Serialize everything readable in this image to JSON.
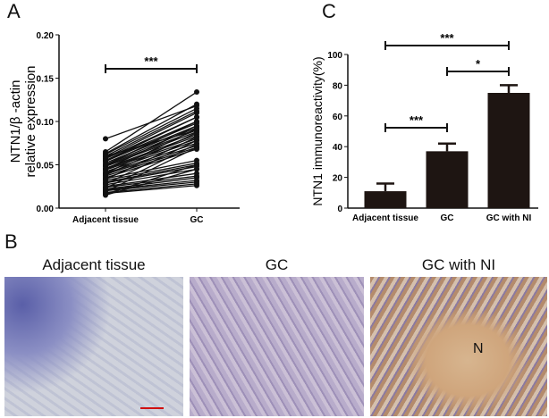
{
  "panels": {
    "a": "A",
    "b": "B",
    "c": "C"
  },
  "chart_data": [
    {
      "type": "line",
      "panel": "A",
      "ylabel": "NTN1/β -actin relative expression",
      "ylabel_lines": [
        "NTN1/β -actin",
        "relative expression"
      ],
      "categories": [
        "Adjacent tissue",
        "GC"
      ],
      "ylim": [
        0,
        0.2
      ],
      "yticks": [
        "0.00",
        "0.05",
        "0.10",
        "0.15",
        "0.20"
      ],
      "significance": [
        {
          "from": "Adjacent tissue",
          "to": "GC",
          "label": "***"
        }
      ],
      "pairs": [
        [
          0.08,
          0.118
        ],
        [
          0.065,
          0.134
        ],
        [
          0.063,
          0.12
        ],
        [
          0.062,
          0.115
        ],
        [
          0.06,
          0.112
        ],
        [
          0.058,
          0.11
        ],
        [
          0.057,
          0.105
        ],
        [
          0.055,
          0.1
        ],
        [
          0.054,
          0.098
        ],
        [
          0.052,
          0.095
        ],
        [
          0.05,
          0.093
        ],
        [
          0.049,
          0.09
        ],
        [
          0.048,
          0.088
        ],
        [
          0.046,
          0.085
        ],
        [
          0.045,
          0.083
        ],
        [
          0.044,
          0.08
        ],
        [
          0.042,
          0.078
        ],
        [
          0.04,
          0.075
        ],
        [
          0.039,
          0.072
        ],
        [
          0.037,
          0.07
        ],
        [
          0.035,
          0.068
        ],
        [
          0.034,
          0.055
        ],
        [
          0.032,
          0.052
        ],
        [
          0.03,
          0.05
        ],
        [
          0.029,
          0.048
        ],
        [
          0.027,
          0.045
        ],
        [
          0.025,
          0.04
        ],
        [
          0.024,
          0.037
        ],
        [
          0.022,
          0.035
        ],
        [
          0.021,
          0.032
        ],
        [
          0.02,
          0.03
        ],
        [
          0.018,
          0.028
        ],
        [
          0.017,
          0.026
        ],
        [
          0.016,
          0.05
        ],
        [
          0.015,
          0.045
        ],
        [
          0.06,
          0.09
        ],
        [
          0.055,
          0.105
        ],
        [
          0.05,
          0.1
        ],
        [
          0.045,
          0.095
        ],
        [
          0.04,
          0.092
        ],
        [
          0.038,
          0.087
        ],
        [
          0.033,
          0.082
        ],
        [
          0.028,
          0.078
        ],
        [
          0.023,
          0.074
        ],
        [
          0.019,
          0.07
        ]
      ]
    },
    {
      "type": "bar",
      "panel": "C",
      "ylabel": "NTN1 immunoreactivity(%)",
      "categories": [
        "Adjacent tissue",
        "GC",
        "GC with NI"
      ],
      "values": [
        11,
        37,
        75
      ],
      "errors": [
        5,
        5,
        5
      ],
      "ylim": [
        0,
        100
      ],
      "yticks": [
        "0",
        "20",
        "40",
        "60",
        "80",
        "100"
      ],
      "bar_color": "#1e1512",
      "significance": [
        {
          "from": "Adjacent tissue",
          "to": "GC",
          "label": "***"
        },
        {
          "from": "GC",
          "to": "GC with NI",
          "label": "*"
        },
        {
          "from": "Adjacent tissue",
          "to": "GC with NI",
          "label": "***"
        }
      ]
    }
  ],
  "images": [
    {
      "title": "Adjacent tissue",
      "tint": "#c8c8d8"
    },
    {
      "title": "GC",
      "tint": "#b9abc8"
    },
    {
      "title": "GC with NI",
      "tint": "#c9a98a",
      "annotation": "N"
    }
  ]
}
